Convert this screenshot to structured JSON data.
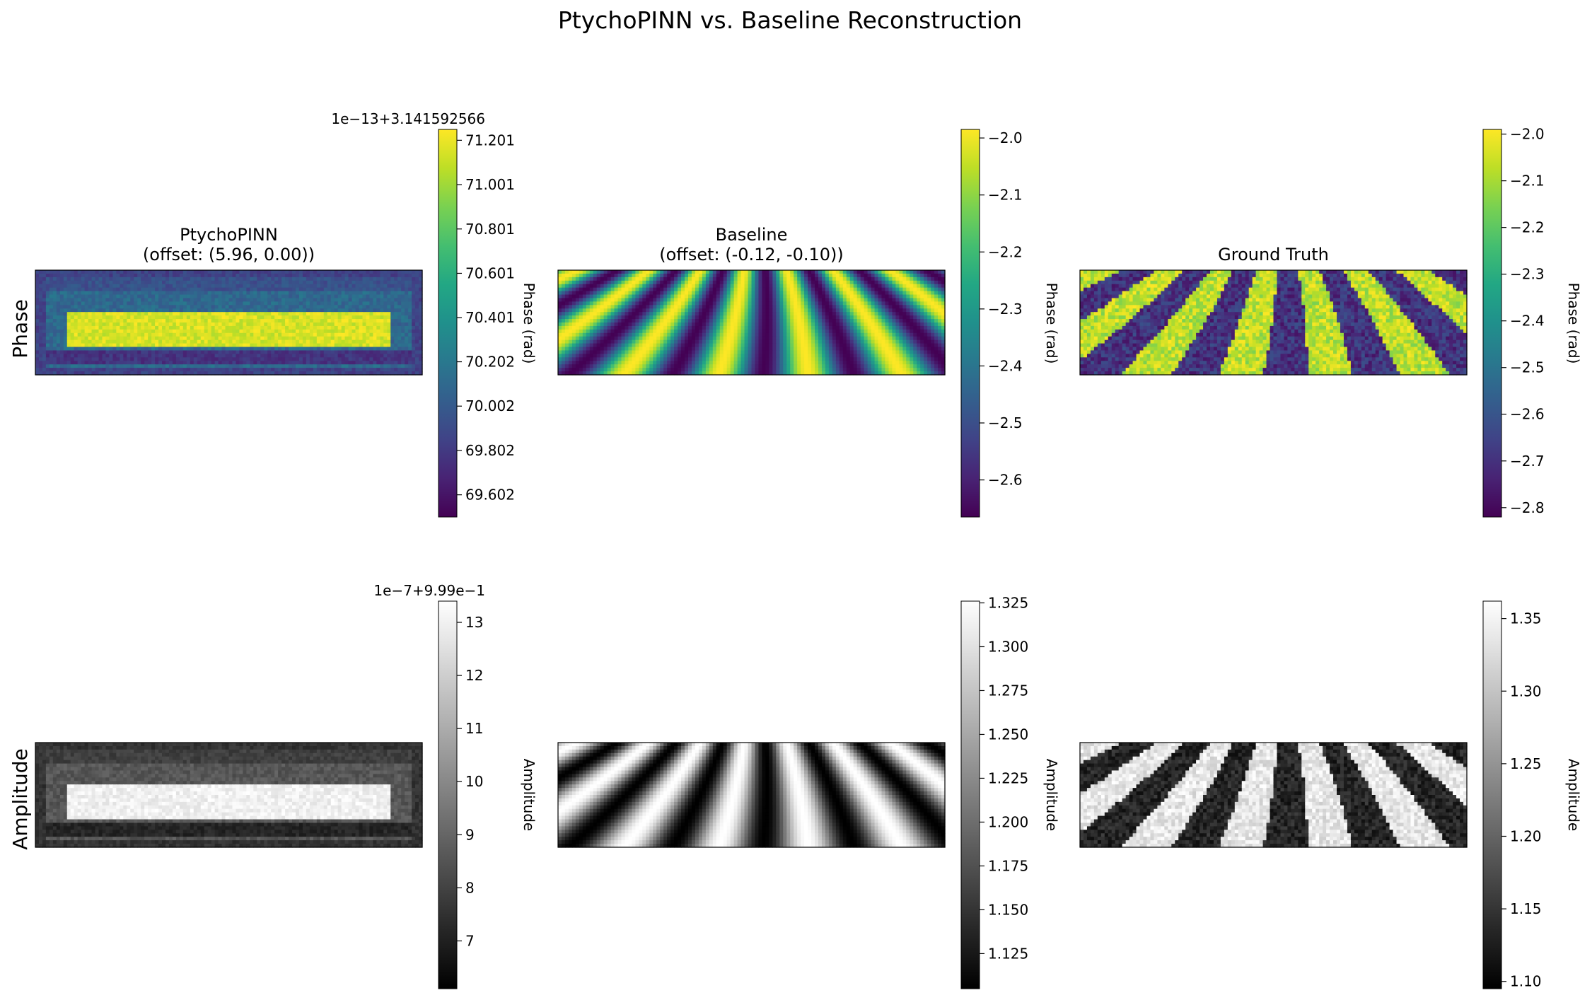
{
  "chart_data": {
    "type": "heatmap",
    "title": "PtychoPINN vs. Baseline Reconstruction",
    "rows": [
      "Phase",
      "Amplitude"
    ],
    "panels": [
      {
        "id": "phase-ptychopinn",
        "title_line1": "PtychoPINN",
        "title_line2": "(offset: (5.96, 0.00))",
        "colormap": "viridis",
        "pattern": "bar",
        "colorbar": {
          "label": "Phase (rad)",
          "offset_text": "1e−13+3.141592566",
          "range": [
            69.502,
            71.25
          ],
          "ticks": [
            69.602,
            69.802,
            70.002,
            70.202,
            70.401,
            70.601,
            70.801,
            71.001,
            71.201
          ],
          "tick_labels": [
            "69.602",
            "69.802",
            "70.002",
            "70.202",
            "70.401",
            "70.601",
            "70.801",
            "71.001",
            "71.201"
          ]
        }
      },
      {
        "id": "phase-baseline",
        "title_line1": "Baseline",
        "title_line2": "(offset: (-0.12, -0.10))",
        "colormap": "viridis",
        "pattern": "fan_smooth",
        "colorbar": {
          "label": "Phase (rad)",
          "offset_text": "",
          "range": [
            -2.665,
            -1.985
          ],
          "ticks": [
            -2.6,
            -2.5,
            -2.4,
            -2.3,
            -2.2,
            -2.1,
            -2.0
          ],
          "tick_labels": [
            "−2.6",
            "−2.5",
            "−2.4",
            "−2.3",
            "−2.2",
            "−2.1",
            "−2.0"
          ]
        }
      },
      {
        "id": "phase-ground-truth",
        "title_line1": "Ground Truth",
        "title_line2": "",
        "colormap": "viridis",
        "pattern": "fan_noisy",
        "colorbar": {
          "label": "Phase (rad)",
          "offset_text": "",
          "range": [
            -2.82,
            -1.99
          ],
          "ticks": [
            -2.8,
            -2.7,
            -2.6,
            -2.5,
            -2.4,
            -2.3,
            -2.2,
            -2.1,
            -2.0
          ],
          "tick_labels": [
            "−2.8",
            "−2.7",
            "−2.6",
            "−2.5",
            "−2.4",
            "−2.3",
            "−2.2",
            "−2.1",
            "−2.0"
          ]
        }
      },
      {
        "id": "amplitude-ptychopinn",
        "title_line1": "",
        "title_line2": "",
        "colormap": "gray",
        "pattern": "bar",
        "colorbar": {
          "label": "Amplitude",
          "offset_text": "1e−7+9.99e−1",
          "range": [
            6.1,
            13.4
          ],
          "ticks": [
            7,
            8,
            9,
            10,
            11,
            12,
            13
          ],
          "tick_labels": [
            "7",
            "8",
            "9",
            "10",
            "11",
            "12",
            "13"
          ]
        }
      },
      {
        "id": "amplitude-baseline",
        "title_line1": "",
        "title_line2": "",
        "colormap": "gray",
        "pattern": "fan_smooth",
        "colorbar": {
          "label": "Amplitude",
          "offset_text": "",
          "range": [
            1.105,
            1.326
          ],
          "ticks": [
            1.125,
            1.15,
            1.175,
            1.2,
            1.225,
            1.25,
            1.275,
            1.3,
            1.325
          ],
          "tick_labels": [
            "1.125",
            "1.150",
            "1.175",
            "1.200",
            "1.225",
            "1.250",
            "1.275",
            "1.300",
            "1.325"
          ]
        }
      },
      {
        "id": "amplitude-ground-truth",
        "title_line1": "",
        "title_line2": "",
        "colormap": "gray",
        "pattern": "fan_noisy",
        "colorbar": {
          "label": "Amplitude",
          "offset_text": "",
          "range": [
            1.095,
            1.362
          ],
          "ticks": [
            1.1,
            1.15,
            1.2,
            1.25,
            1.3,
            1.35
          ],
          "tick_labels": [
            "1.10",
            "1.15",
            "1.20",
            "1.25",
            "1.30",
            "1.35"
          ]
        }
      }
    ]
  }
}
